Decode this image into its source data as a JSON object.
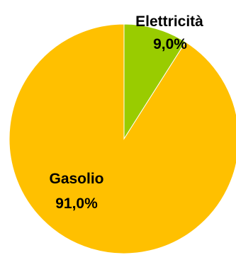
{
  "chart_data": {
    "type": "pie",
    "slices": [
      {
        "label": "Elettricità",
        "value_label": "9,0%",
        "value": 9.0,
        "color": "#99CC00"
      },
      {
        "label": "Gasolio",
        "value_label": "91,0%",
        "value": 91.0,
        "color": "#FFC000"
      }
    ],
    "legend": "none"
  }
}
